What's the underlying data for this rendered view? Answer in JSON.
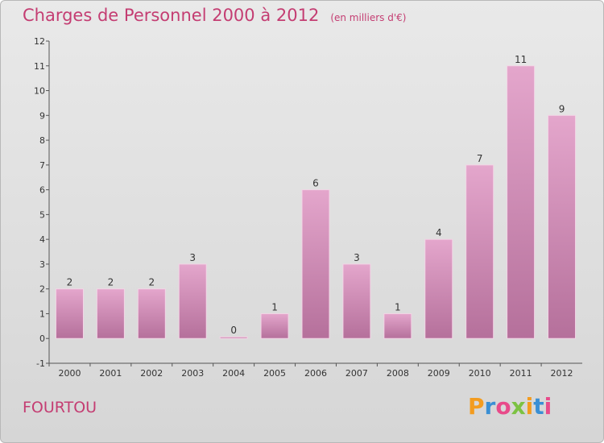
{
  "header": {
    "title": "Charges de Personnel 2000 à 2012",
    "subtitle": "(en milliers d'€)"
  },
  "footer": {
    "commune": "FOURTOU"
  },
  "logo": {
    "letters": [
      "P",
      "r",
      "o",
      "x",
      "i",
      "t",
      "i"
    ],
    "colors": [
      "#f39c1f",
      "#3a8fd4",
      "#e84b8a",
      "#7cc242",
      "#f39c1f",
      "#3a8fd4",
      "#e84b8a"
    ]
  },
  "chart_data": {
    "type": "bar",
    "categories": [
      "2000",
      "2001",
      "2002",
      "2003",
      "2004",
      "2005",
      "2006",
      "2007",
      "2008",
      "2009",
      "2010",
      "2011",
      "2012"
    ],
    "values": [
      2,
      2,
      2,
      3,
      0,
      1,
      6,
      3,
      1,
      4,
      7,
      11,
      9
    ],
    "data_labels": [
      "2",
      "2",
      "2",
      "3",
      "0",
      "1",
      "6",
      "3",
      "1",
      "4",
      "7",
      "11",
      "9"
    ],
    "ylim": [
      -1,
      12
    ],
    "yticks": [
      -1,
      0,
      1,
      2,
      3,
      4,
      5,
      6,
      7,
      8,
      9,
      10,
      11,
      12
    ],
    "grid": false,
    "colors": {
      "bar_top": "#e4a6cc",
      "bar_bottom": "#b5709b",
      "bar_edge": "#f3d4e6"
    }
  }
}
